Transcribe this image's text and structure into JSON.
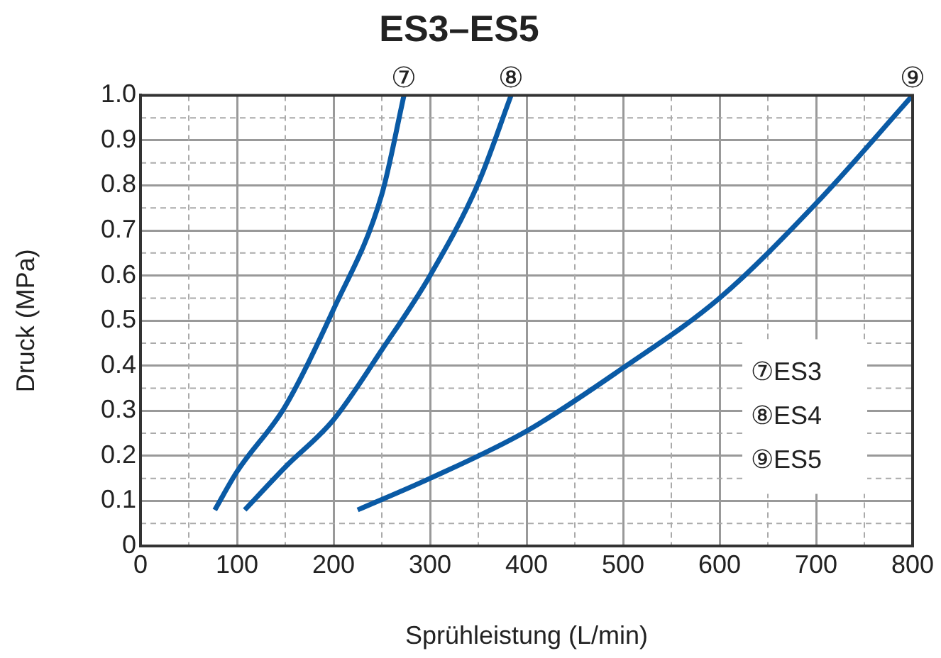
{
  "chart_data": {
    "type": "line",
    "title": "ES3–ES5",
    "xlabel": "Sprühleistung (L/min)",
    "ylabel": "Druck (MPa)",
    "xlim": [
      0,
      800
    ],
    "xticks": [
      0,
      {
        "value": 50,
        "label": null
      },
      100,
      {
        "value": 150,
        "label": null
      },
      200,
      {
        "value": 250,
        "label": null
      },
      300,
      {
        "value": 350,
        "label": null
      },
      400,
      {
        "value": 450,
        "label": null
      },
      500,
      {
        "value": 550,
        "label": null
      },
      600,
      {
        "value": 650,
        "label": null
      },
      700,
      {
        "value": 750,
        "label": null
      },
      800
    ],
    "ylim": [
      0,
      1
    ],
    "yticks": [
      0,
      {
        "value": 0.05,
        "label": null
      },
      0.1,
      {
        "value": 0.15,
        "label": null
      },
      0.2,
      {
        "value": 0.25,
        "label": null
      },
      0.3,
      {
        "value": 0.35,
        "label": null
      },
      0.4,
      {
        "value": 0.45,
        "label": null
      },
      0.5,
      {
        "value": 0.55,
        "label": null
      },
      0.6,
      {
        "value": 0.65,
        "label": null
      },
      0.7,
      {
        "value": 0.75,
        "label": null
      },
      0.8,
      {
        "value": 0.85,
        "label": null
      },
      0.9,
      {
        "value": 0.95,
        "label": null
      },
      {
        "value": 1,
        "label": "1.0"
      }
    ],
    "grid": true,
    "marker": "none",
    "series": [
      {
        "name": "⑦",
        "color": "#0a5aa5",
        "x": [
          77,
          100,
          150,
          200,
          250,
          273
        ],
        "values": [
          0.08,
          0.165,
          0.31,
          0.525,
          0.78,
          1.0
        ]
      },
      {
        "name": "⑧",
        "color": "#0a5aa5",
        "x": [
          108,
          150,
          200,
          250,
          300,
          350,
          384
        ],
        "values": [
          0.08,
          0.175,
          0.28,
          0.435,
          0.6,
          0.805,
          1.0
        ]
      },
      {
        "name": "⑨",
        "color": "#0a5aa5",
        "x": [
          225,
          300,
          400,
          500,
          600,
          700,
          800
        ],
        "values": [
          0.08,
          0.15,
          0.255,
          0.395,
          0.55,
          0.76,
          1.0
        ]
      }
    ],
    "annotations": [
      "⑦ES3",
      "⑧ES4",
      "⑨ES5"
    ]
  }
}
